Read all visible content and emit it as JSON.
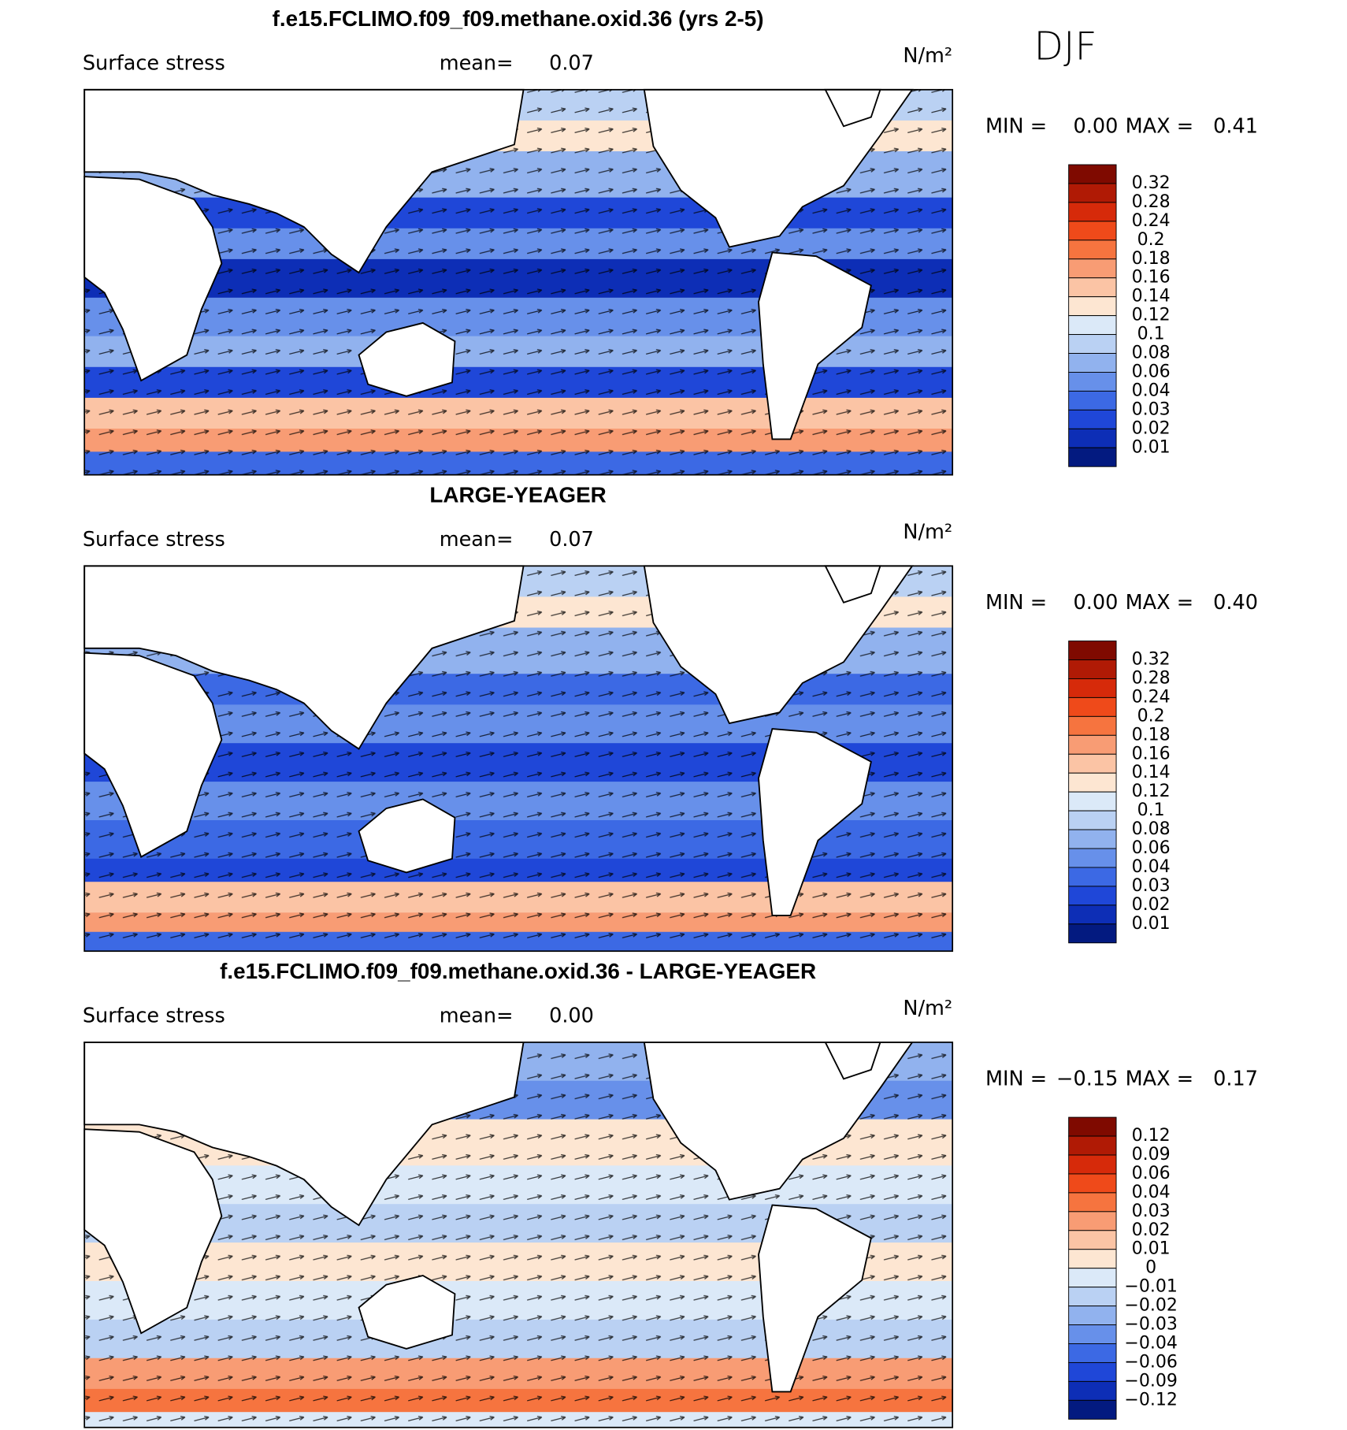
{
  "season": "DJF",
  "panels": [
    {
      "title": "f.e15.FCLIMO.f09_f09.methane.oxid.36 (yrs 2-5)",
      "variable": "Surface stress",
      "mean_label": "mean=",
      "mean": "0.07",
      "units": "N/m²",
      "min_label": "MIN =",
      "min": "0.00",
      "max_label": "MAX =",
      "max": "0.41",
      "colorbar": {
        "levels": [
          "0.32",
          "0.28",
          "0.24",
          "0.2",
          "0.18",
          "0.16",
          "0.14",
          "0.12",
          "0.1",
          "0.08",
          "0.06",
          "0.04",
          "0.03",
          "0.02",
          "0.01"
        ],
        "colors": [
          "#7f0a00",
          "#b01a05",
          "#d62a0a",
          "#ef4a1a",
          "#f6743f",
          "#f89c74",
          "#fbc4a5",
          "#fde6d2",
          "#dbe9f8",
          "#bad1f3",
          "#91b2ee",
          "#6790ea",
          "#3c69e4",
          "#1f47d8",
          "#0d2eb6",
          "#031a80"
        ]
      }
    },
    {
      "title": "LARGE-YEAGER",
      "variable": "Surface stress",
      "mean_label": "mean=",
      "mean": "0.07",
      "units": "N/m²",
      "min_label": "MIN =",
      "min": "0.00",
      "max_label": "MAX =",
      "max": "0.40",
      "colorbar": {
        "levels": [
          "0.32",
          "0.28",
          "0.24",
          "0.2",
          "0.18",
          "0.16",
          "0.14",
          "0.12",
          "0.1",
          "0.08",
          "0.06",
          "0.04",
          "0.03",
          "0.02",
          "0.01"
        ],
        "colors": [
          "#7f0a00",
          "#b01a05",
          "#d62a0a",
          "#ef4a1a",
          "#f6743f",
          "#f89c74",
          "#fbc4a5",
          "#fde6d2",
          "#dbe9f8",
          "#bad1f3",
          "#91b2ee",
          "#6790ea",
          "#3c69e4",
          "#1f47d8",
          "#0d2eb6",
          "#031a80"
        ]
      }
    },
    {
      "title": "f.e15.FCLIMO.f09_f09.methane.oxid.36 - LARGE-YEAGER",
      "variable": "Surface stress",
      "mean_label": "mean=",
      "mean": "0.00",
      "units": "N/m²",
      "min_label": "MIN =",
      "min": "−0.15",
      "max_label": "MAX =",
      "max": "0.17",
      "colorbar": {
        "levels": [
          "0.12",
          "0.09",
          "0.06",
          "0.04",
          "0.03",
          "0.02",
          "0.01",
          "0",
          "−0.01",
          "−0.02",
          "−0.03",
          "−0.04",
          "−0.06",
          "−0.09",
          "−0.12"
        ],
        "colors": [
          "#7f0a00",
          "#b01a05",
          "#d62a0a",
          "#ef4a1a",
          "#f6743f",
          "#f89c74",
          "#fbc4a5",
          "#fde6d2",
          "#dbe9f8",
          "#bad1f3",
          "#91b2ee",
          "#6790ea",
          "#3c69e4",
          "#1f47d8",
          "#0d2eb6",
          "#031a80"
        ]
      }
    }
  ]
}
